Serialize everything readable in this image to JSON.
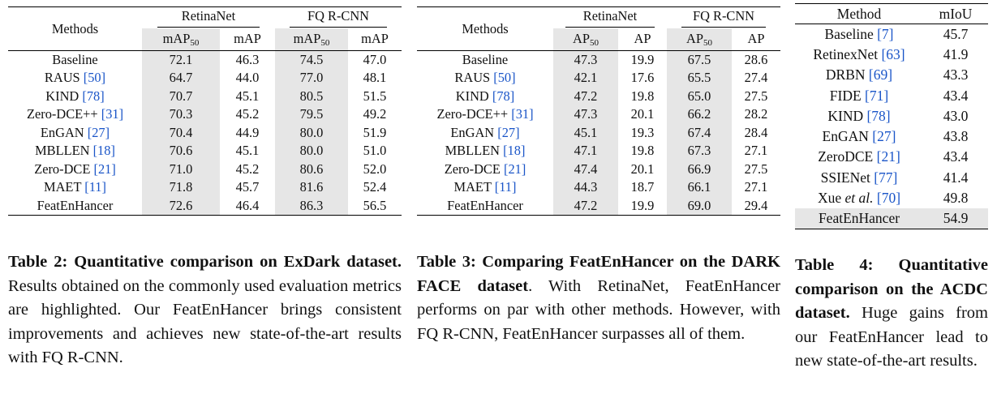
{
  "table2": {
    "methods_header": "Methods",
    "group1": "RetinaNet",
    "group2": "FQ R-CNN",
    "sub_main": "mAP",
    "sub_main_subscript": "50",
    "sub_second": "mAP",
    "rows": [
      {
        "name": "Baseline",
        "cite": "",
        "v": [
          "72.1",
          "46.3",
          "74.5",
          "47.0"
        ]
      },
      {
        "name": "RAUS",
        "cite": "[50]",
        "v": [
          "64.7",
          "44.0",
          "77.0",
          "48.1"
        ]
      },
      {
        "name": "KIND",
        "cite": "[78]",
        "v": [
          "70.7",
          "45.1",
          "80.5",
          "51.5"
        ]
      },
      {
        "name": "Zero-DCE++",
        "cite": "[31]",
        "v": [
          "70.3",
          "45.2",
          "79.5",
          "49.2"
        ]
      },
      {
        "name": "EnGAN",
        "cite": "[27]",
        "v": [
          "70.4",
          "44.9",
          "80.0",
          "51.9"
        ]
      },
      {
        "name": "MBLLEN",
        "cite": "[18]",
        "v": [
          "70.6",
          "45.1",
          "80.0",
          "51.0"
        ]
      },
      {
        "name": "Zero-DCE",
        "cite": "[21]",
        "v": [
          "71.0",
          "45.2",
          "80.6",
          "52.0"
        ]
      },
      {
        "name": "MAET",
        "cite": "[11]",
        "v": [
          "71.8",
          "45.7",
          "81.6",
          "52.4"
        ]
      },
      {
        "name": "FeatEnHancer",
        "cite": "",
        "v": [
          "72.6",
          "46.4",
          "86.3",
          "56.5"
        ]
      }
    ],
    "caption_bold": "Table 2: Quantitative comparison on ExDark dataset.",
    "caption_rest": " Results obtained on the commonly used evaluation metrics are highlighted. Our FeatEnHancer brings consistent improvements and achieves new state-of-the-art results with FQ R-CNN."
  },
  "table3": {
    "methods_header": "Methods",
    "group1": "RetinaNet",
    "group2": "FQ R-CNN",
    "sub_main": "AP",
    "sub_main_subscript": "50",
    "sub_second": "AP",
    "rows": [
      {
        "name": "Baseline",
        "cite": "",
        "v": [
          "47.3",
          "19.9",
          "67.5",
          "28.6"
        ]
      },
      {
        "name": "RAUS",
        "cite": "[50]",
        "v": [
          "42.1",
          "17.6",
          "65.5",
          "27.4"
        ]
      },
      {
        "name": "KIND",
        "cite": "[78]",
        "v": [
          "47.2",
          "19.8",
          "65.0",
          "27.5"
        ]
      },
      {
        "name": "Zero-DCE++",
        "cite": "[31]",
        "v": [
          "47.3",
          "20.1",
          "66.2",
          "28.2"
        ]
      },
      {
        "name": "EnGAN",
        "cite": "[27]",
        "v": [
          "45.1",
          "19.3",
          "67.4",
          "28.4"
        ]
      },
      {
        "name": "MBLLEN",
        "cite": "[18]",
        "v": [
          "47.1",
          "19.8",
          "67.3",
          "27.1"
        ]
      },
      {
        "name": "Zero-DCE",
        "cite": "[21]",
        "v": [
          "47.4",
          "20.1",
          "66.9",
          "27.5"
        ]
      },
      {
        "name": "MAET",
        "cite": "[11]",
        "v": [
          "44.3",
          "18.7",
          "66.1",
          "27.1"
        ]
      },
      {
        "name": "FeatEnHancer",
        "cite": "",
        "v": [
          "47.2",
          "19.9",
          "69.0",
          "29.4"
        ]
      }
    ],
    "caption_bold": "Table 3: Comparing FeatEnHancer on the DARK FACE dataset",
    "caption_rest": ". With RetinaNet, FeatEnHancer performs on par with other methods. However, with FQ R-CNN, FeatEnHancer surpasses all of them."
  },
  "table4": {
    "methods_header": "Method",
    "metric_header": "mIoU",
    "rows": [
      {
        "name": "Baseline",
        "cite": "[7]",
        "v": "45.7"
      },
      {
        "name": "RetinexNet",
        "cite": "[63]",
        "v": "41.9"
      },
      {
        "name": "DRBN",
        "cite": "[69]",
        "v": "43.3"
      },
      {
        "name": "FIDE",
        "cite": "[71]",
        "v": "43.4"
      },
      {
        "name": "KIND",
        "cite": "[78]",
        "v": "43.0"
      },
      {
        "name": "EnGAN",
        "cite": "[27]",
        "v": "43.8"
      },
      {
        "name": "ZeroDCE",
        "cite": "[21]",
        "v": "43.4"
      },
      {
        "name": "SSIENet",
        "cite": "[77]",
        "v": "41.4"
      },
      {
        "name": "Xue",
        "name_italic": "et al.",
        "cite": "[70]",
        "v": "49.8"
      },
      {
        "name": "FeatEnHancer",
        "cite": "",
        "v": "54.9"
      }
    ],
    "caption_bold": "Table 4: Quantitative comparison on the ACDC dataset.",
    "caption_rest": " Huge gains from our FeatEnHancer lead to new state-of-the-art results."
  },
  "colors": {
    "shade": "#e6e6e6",
    "cite": "#1a55c8"
  }
}
